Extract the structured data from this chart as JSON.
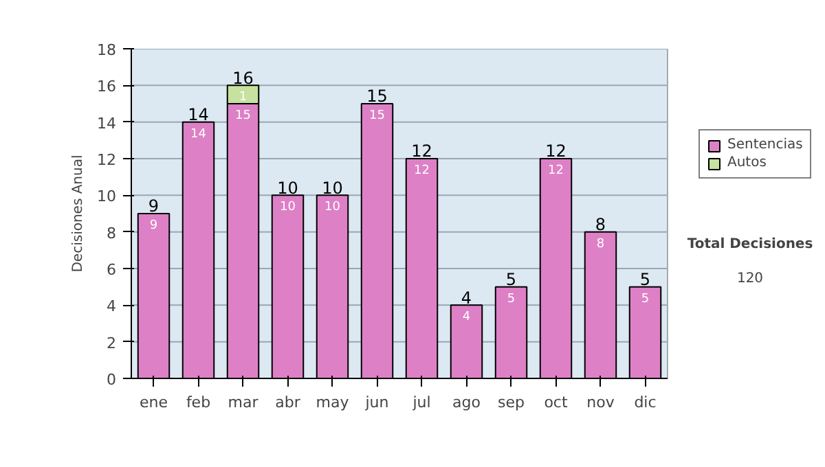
{
  "chart_data": {
    "type": "bar",
    "stacked": true,
    "ylabel": "Decisiones Anual",
    "categories": [
      "ene",
      "feb",
      "mar",
      "abr",
      "may",
      "jun",
      "jul",
      "ago",
      "sep",
      "oct",
      "nov",
      "dic"
    ],
    "series": [
      {
        "name": "Sentencias",
        "color": "#dd80c6",
        "values": [
          9,
          14,
          15,
          10,
          10,
          15,
          12,
          4,
          5,
          12,
          8,
          5
        ]
      },
      {
        "name": "Autos",
        "color": "#c6e29e",
        "values": [
          null,
          null,
          1,
          null,
          null,
          null,
          null,
          null,
          null,
          null,
          null,
          null
        ]
      }
    ],
    "totals": [
      "9",
      "14",
      "16",
      "10",
      "10",
      "15",
      "12",
      "4",
      "5",
      "12",
      "8",
      "5"
    ],
    "data_labels": true,
    "ylim": [
      0,
      18
    ],
    "yticks": [
      0,
      2,
      4,
      6,
      8,
      10,
      12,
      14,
      16,
      18
    ],
    "grid": "y",
    "legend": "right",
    "annotations": [
      "Total Decisiones",
      "120"
    ]
  }
}
